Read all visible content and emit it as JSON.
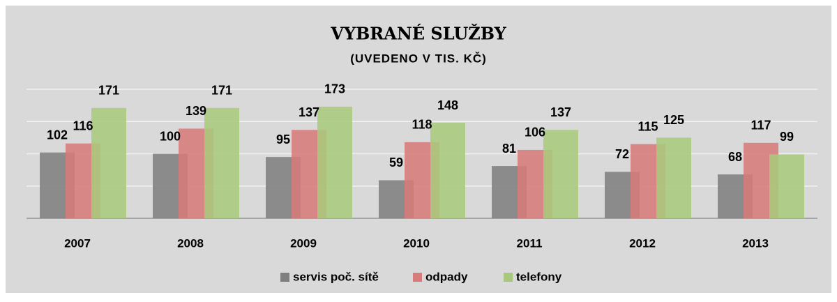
{
  "chart_data": {
    "type": "bar",
    "title": "VYBRANÉ SLUŽBY",
    "subtitle": "(UVEDENO V TIS. KČ)",
    "categories": [
      "2007",
      "2008",
      "2009",
      "2010",
      "2011",
      "2012",
      "2013"
    ],
    "series": [
      {
        "name": "servis poč. sítě",
        "color": "#7f7f7f",
        "values": [
          102,
          100,
          95,
          59,
          81,
          72,
          68
        ]
      },
      {
        "name": "odpady",
        "color": "#d77b7b",
        "values": [
          116,
          139,
          137,
          118,
          106,
          115,
          117
        ]
      },
      {
        "name": "telefony",
        "color": "#a8c97c",
        "values": [
          171,
          171,
          173,
          148,
          137,
          125,
          99
        ]
      }
    ],
    "ylim": [
      0,
      200
    ],
    "yticks": [
      0,
      50,
      100,
      150,
      200
    ],
    "grid": true,
    "legend": "bottom"
  }
}
